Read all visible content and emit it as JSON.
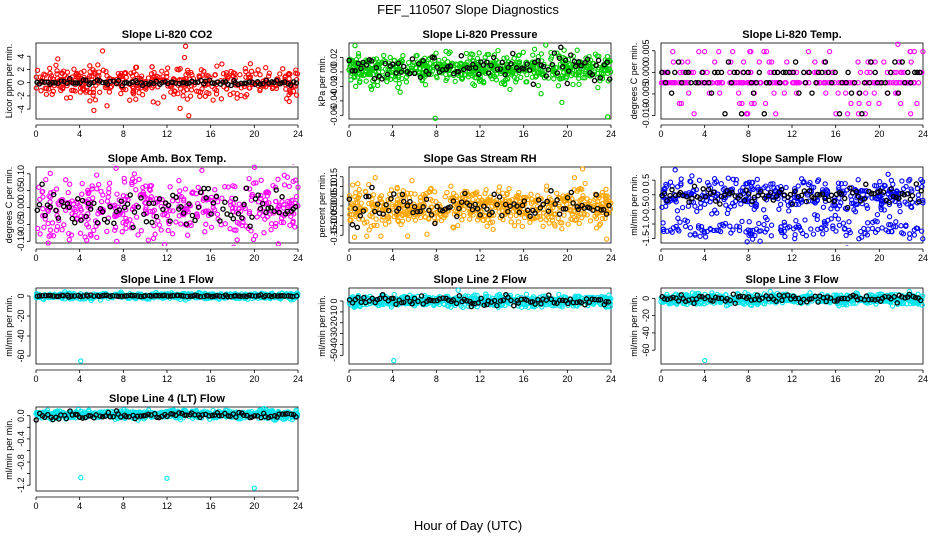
{
  "figure": {
    "title": "FEF_110507  Slope Diagnostics",
    "xlabel": "Hour of Day (UTC)"
  },
  "colors": {
    "red": "#ff0000",
    "green": "#00cc00",
    "magenta": "#ff00ff",
    "orange": "#ffa500",
    "blue": "#0000ff",
    "cyan": "#00e5ee",
    "black": "#000000"
  },
  "chart_data": [
    {
      "type": "scatter",
      "title": "Slope Li-820 CO2",
      "ylabel": "Licor ppm per min.",
      "xlabel": "",
      "xlim": [
        0,
        24
      ],
      "xticks": [
        0,
        4,
        8,
        12,
        16,
        20,
        24
      ],
      "xtick_labels": [
        "0",
        "4",
        "8",
        "12",
        "16",
        "20",
        "24"
      ],
      "ylim": [
        -5.5,
        6.0
      ],
      "yticks": [
        -4,
        -2,
        0,
        2,
        4
      ],
      "ytick_labels": [
        "-4",
        "-2",
        "0",
        "2",
        "4"
      ],
      "series": [
        {
          "name": "all",
          "color": "#ff0000",
          "spread": 1.2,
          "center": 0.0,
          "mode": "normal",
          "outliers": [
            [
              6.1,
              4.8
            ],
            [
              6.5,
              -3.5
            ],
            [
              13.7,
              5.5
            ],
            [
              13.6,
              3.8
            ],
            [
              14.0,
              -5.0
            ],
            [
              13.2,
              -3.9
            ],
            [
              5.3,
              -4.2
            ],
            [
              2.0,
              3.6
            ],
            [
              23.8,
              1.9
            ]
          ]
        },
        {
          "name": "hourly",
          "color": "#000000",
          "spread": 0.2,
          "center": 0.0,
          "mode": "normal",
          "outliers": []
        }
      ]
    },
    {
      "type": "scatter",
      "title": "Slope Li-820 Pressure",
      "ylabel": "kPa per min.",
      "xlabel": "",
      "xlim": [
        0,
        24
      ],
      "xticks": [
        0,
        4,
        8,
        12,
        16,
        20,
        24
      ],
      "xtick_labels": [
        "0",
        "4",
        "8",
        "12",
        "16",
        "20",
        "24"
      ],
      "ylim": [
        -0.065,
        0.04
      ],
      "yticks": [
        -0.06,
        -0.04,
        -0.02,
        0.0,
        0.02
      ],
      "ytick_labels": [
        "-0.06",
        "-0.04",
        "-0.02",
        "0.00",
        "0.02"
      ],
      "series": [
        {
          "name": "all",
          "color": "#00cc00",
          "spread": 0.011,
          "center": 0.005,
          "mode": "dense",
          "outliers": [
            [
              19.5,
              -0.042
            ],
            [
              23.7,
              -0.062
            ],
            [
              7.9,
              -0.064
            ],
            [
              19.7,
              0.03
            ],
            [
              20.9,
              0.03
            ],
            [
              17.6,
              -0.03
            ]
          ]
        },
        {
          "name": "hourly",
          "color": "#000000",
          "spread": 0.008,
          "center": 0.007,
          "mode": "normal",
          "outliers": [
            [
              19.4,
              0.034
            ],
            [
              20.0,
              -0.016
            ],
            [
              22.5,
              -0.012
            ]
          ]
        }
      ]
    },
    {
      "type": "scatter",
      "title": "Slope Li-820 Temp.",
      "ylabel": "degrees C per min.",
      "xlabel": "",
      "xlim": [
        0,
        24
      ],
      "xticks": [
        0,
        4,
        8,
        12,
        16,
        20,
        24
      ],
      "xtick_labels": [
        "0",
        "4",
        "8",
        "12",
        "16",
        "20",
        "24"
      ],
      "ylim": [
        -0.0108,
        0.0068
      ],
      "yticks": [
        -0.01,
        -0.005,
        0.0,
        0.005
      ],
      "ytick_labels": [
        "-0.010",
        "-0.005",
        "0.000",
        "0.005"
      ],
      "series": [
        {
          "name": "all",
          "color": "#ff00ff",
          "mode": "levels",
          "levels": [
            -0.0024,
            0.0,
            0.0024,
            -0.0048,
            -0.0072,
            -0.0096,
            0.0048
          ],
          "level_weights": [
            8,
            3,
            1.4,
            1.4,
            0.8,
            0.6,
            0.5
          ],
          "spread": 0,
          "center": 0,
          "outliers": [
            [
              21.7,
              0.0065
            ]
          ]
        },
        {
          "name": "hourly",
          "color": "#000000",
          "mode": "levels",
          "levels": [
            0.0,
            -0.0024,
            0.0024,
            -0.0048,
            -0.0096
          ],
          "level_weights": [
            5,
            4,
            1,
            1,
            0.6
          ],
          "spread": 0,
          "center": 0,
          "outliers": []
        }
      ]
    },
    {
      "type": "scatter",
      "title": "Slope Amb. Box Temp.",
      "ylabel": "degrees C per min.",
      "xlabel": "",
      "xlim": [
        0,
        24
      ],
      "xticks": [
        0,
        4,
        8,
        12,
        16,
        20,
        24
      ],
      "xtick_labels": [
        "0",
        "4",
        "8",
        "12",
        "16",
        "20",
        "24"
      ],
      "ylim": [
        -0.105,
        0.12
      ],
      "yticks": [
        -0.1,
        -0.05,
        0.0,
        0.05,
        0.1
      ],
      "ytick_labels": [
        "-0.10",
        "-0.05",
        "0.00",
        "0.05",
        "0.10"
      ],
      "series": [
        {
          "name": "all",
          "color": "#ff00ff",
          "spread": 0.045,
          "center": 0.0,
          "mode": "normal",
          "outliers": [
            [
              7.4,
              -0.1
            ],
            [
              15.2,
              0.11
            ],
            [
              1.2,
              -0.085
            ]
          ]
        },
        {
          "name": "hourly",
          "color": "#000000",
          "spread": 0.028,
          "center": 0.0,
          "mode": "normal",
          "outliers": []
        }
      ]
    },
    {
      "type": "scatter",
      "title": "Slope Gas Stream RH",
      "ylabel": "percent per min.",
      "xlabel": "",
      "xlim": [
        0,
        24
      ],
      "xticks": [
        0,
        4,
        8,
        12,
        16,
        20,
        24
      ],
      "xtick_labels": [
        "0",
        "4",
        "8",
        "12",
        "16",
        "20",
        "24"
      ],
      "ylim": [
        -0.19,
        0.2
      ],
      "yticks": [
        -0.15,
        -0.1,
        -0.05,
        0.0,
        0.05,
        0.1,
        0.15
      ],
      "ytick_labels": [
        "-0.15",
        "-0.10",
        "-0.05",
        "0.00",
        "0.05",
        "0.10",
        "0.15"
      ],
      "series": [
        {
          "name": "all",
          "color": "#ffa500",
          "spread": 0.05,
          "center": -0.005,
          "mode": "dense",
          "outliers": [
            [
              21.4,
              0.19
            ],
            [
              1.8,
              0.11
            ],
            [
              0.5,
              -0.16
            ],
            [
              23.6,
              -0.17
            ],
            [
              13.2,
              -0.12
            ]
          ]
        },
        {
          "name": "hourly",
          "color": "#000000",
          "spread": 0.035,
          "center": -0.005,
          "mode": "normal",
          "outliers": []
        }
      ]
    },
    {
      "type": "scatter",
      "title": "Slope Sample Flow",
      "ylabel": "ml/min per min.",
      "xlabel": "",
      "xlim": [
        0,
        24
      ],
      "xticks": [
        0,
        4,
        8,
        12,
        16,
        20,
        24
      ],
      "xtick_labels": [
        "0",
        "4",
        "8",
        "12",
        "16",
        "20",
        "24"
      ],
      "ylim": [
        -1.65,
        0.95
      ],
      "yticks": [
        -1.5,
        -1.0,
        -0.5,
        0.0,
        0.5
      ],
      "ytick_labels": [
        "-1.5",
        "-1.0",
        "-0.5",
        "0.0",
        "0.5"
      ],
      "series": [
        {
          "name": "all",
          "color": "#0000ff",
          "spread": 0.3,
          "center": 0.0,
          "mode": "bimodal",
          "low_center": -1.15,
          "low_spread": 0.18,
          "outliers": [
            [
              1.3,
              0.85
            ],
            [
              20.8,
              0.7
            ]
          ]
        },
        {
          "name": "hourly",
          "color": "#000000",
          "spread": 0.15,
          "center": 0.0,
          "mode": "normal",
          "outliers": []
        }
      ]
    },
    {
      "type": "scatter",
      "title": "Slope Line 1 Flow",
      "ylabel": "ml/min per min.",
      "xlabel": "",
      "xlim": [
        0,
        24
      ],
      "xticks": [
        0,
        4,
        8,
        12,
        16,
        20,
        24
      ],
      "xtick_labels": [
        "0",
        "4",
        "8",
        "12",
        "16",
        "20",
        "24"
      ],
      "ylim": [
        -68,
        8
      ],
      "yticks": [
        -60,
        -40,
        -20,
        0
      ],
      "ytick_labels": [
        "-60",
        "-40",
        "-20",
        "0"
      ],
      "series": [
        {
          "name": "all",
          "color": "#00e5ee",
          "spread": 1.5,
          "center": 0.0,
          "mode": "dense",
          "outliers": [
            [
              4.1,
              -65
            ]
          ]
        },
        {
          "name": "hourly",
          "color": "#000000",
          "spread": 0.4,
          "center": 0.0,
          "mode": "normal",
          "outliers": []
        }
      ]
    },
    {
      "type": "scatter",
      "title": "Slope Line 2 Flow",
      "ylabel": "ml/min per min.",
      "xlabel": "",
      "xlim": [
        0,
        24
      ],
      "xticks": [
        0,
        4,
        8,
        12,
        16,
        20,
        24
      ],
      "xtick_labels": [
        "0",
        "4",
        "8",
        "12",
        "16",
        "20",
        "24"
      ],
      "ylim": [
        -58,
        12
      ],
      "yticks": [
        -50,
        -40,
        -30,
        -20,
        -10,
        0
      ],
      "ytick_labels": [
        "-50",
        "-40",
        "-30",
        "-20",
        "-10",
        "0"
      ],
      "series": [
        {
          "name": "all",
          "color": "#00e5ee",
          "spread": 2.5,
          "center": 0.0,
          "mode": "dense",
          "outliers": [
            [
              4.1,
              -55
            ],
            [
              10.0,
              10
            ]
          ]
        },
        {
          "name": "hourly",
          "color": "#000000",
          "spread": 2.0,
          "center": 0.0,
          "mode": "normal",
          "outliers": [
            [
              11.2,
              -5
            ]
          ]
        }
      ]
    },
    {
      "type": "scatter",
      "title": "Slope Line 3 Flow",
      "ylabel": "ml/min per min.",
      "xlabel": "",
      "xlim": [
        0,
        24
      ],
      "xticks": [
        0,
        4,
        8,
        12,
        16,
        20,
        24
      ],
      "xtick_labels": [
        "0",
        "4",
        "8",
        "12",
        "16",
        "20",
        "24"
      ],
      "ylim": [
        -76,
        12
      ],
      "yticks": [
        -60,
        -40,
        -20,
        0
      ],
      "ytick_labels": [
        "-60",
        "-40",
        "-20",
        "0"
      ],
      "series": [
        {
          "name": "all",
          "color": "#00e5ee",
          "spread": 3.0,
          "center": -1.0,
          "mode": "dense",
          "outliers": [
            [
              4.0,
              -72
            ],
            [
              10.0,
              8
            ]
          ]
        },
        {
          "name": "hourly",
          "color": "#000000",
          "spread": 2.0,
          "center": 0.0,
          "mode": "normal",
          "outliers": []
        }
      ]
    },
    {
      "type": "scatter",
      "title": "Slope Line 4 (LT) Flow",
      "ylabel": "ml/min per min.",
      "xlabel": "",
      "xlim": [
        0,
        24
      ],
      "xticks": [
        0,
        4,
        8,
        12,
        16,
        20,
        24
      ],
      "xtick_labels": [
        "0",
        "4",
        "8",
        "12",
        "16",
        "20",
        "24"
      ],
      "ylim": [
        -1.3,
        0.15
      ],
      "yticks": [
        -1.2,
        -1.0,
        -0.8,
        -0.6,
        -0.4,
        -0.2,
        0.0
      ],
      "ytick_labels": [
        "-1.2",
        "",
        "-0.8",
        "",
        "-0.4",
        "",
        "0.0"
      ],
      "series": [
        {
          "name": "all",
          "color": "#00e5ee",
          "spread": 0.035,
          "center": 0.02,
          "mode": "dense",
          "outliers": [
            [
              4.1,
              -1.07
            ],
            [
              12.0,
              -1.08
            ],
            [
              20.0,
              -1.25
            ]
          ]
        },
        {
          "name": "hourly",
          "color": "#000000",
          "spread": 0.03,
          "center": 0.0,
          "mode": "normal",
          "outliers": []
        }
      ]
    }
  ]
}
